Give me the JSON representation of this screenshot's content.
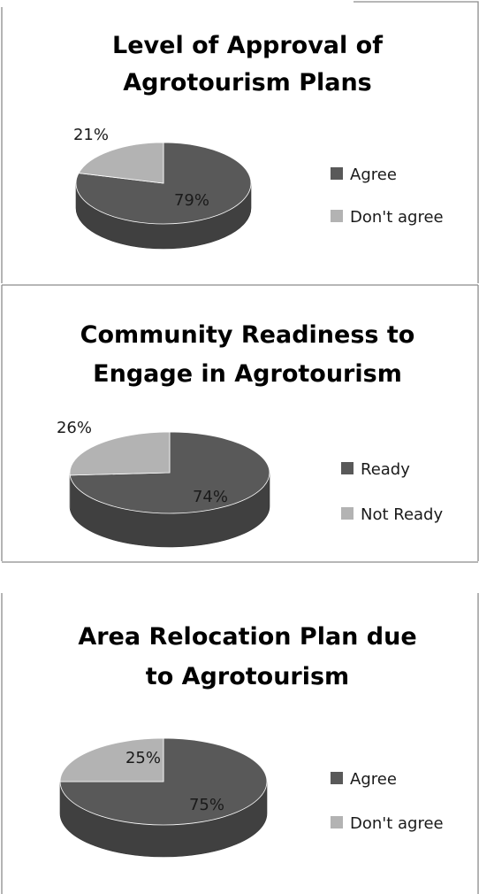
{
  "chart_data": [
    {
      "type": "pie",
      "title_lines": [
        "Level of Approval of",
        "Agrotourism Plans"
      ],
      "categories": [
        "Agree",
        "Don't agree"
      ],
      "values": [
        79,
        21
      ],
      "data_labels": [
        "79%",
        "21%"
      ],
      "colors": [
        "#595959",
        "#b3b3b3"
      ],
      "legend_position": "right",
      "style": "3d"
    },
    {
      "type": "pie",
      "title_lines": [
        "Community Readiness to",
        "Engage in Agrotourism"
      ],
      "categories": [
        "Ready",
        "Not Ready"
      ],
      "values": [
        74,
        26
      ],
      "data_labels": [
        "74%",
        "26%"
      ],
      "colors": [
        "#595959",
        "#b3b3b3"
      ],
      "legend_position": "right",
      "style": "3d"
    },
    {
      "type": "pie",
      "title_lines": [
        "Area Relocation Plan due",
        "to Agrotourism"
      ],
      "categories": [
        "Agree",
        "Don't agree"
      ],
      "values": [
        75,
        25
      ],
      "data_labels": [
        "75%",
        "25%"
      ],
      "colors": [
        "#595959",
        "#b3b3b3"
      ],
      "legend_position": "right",
      "style": "3d"
    }
  ]
}
